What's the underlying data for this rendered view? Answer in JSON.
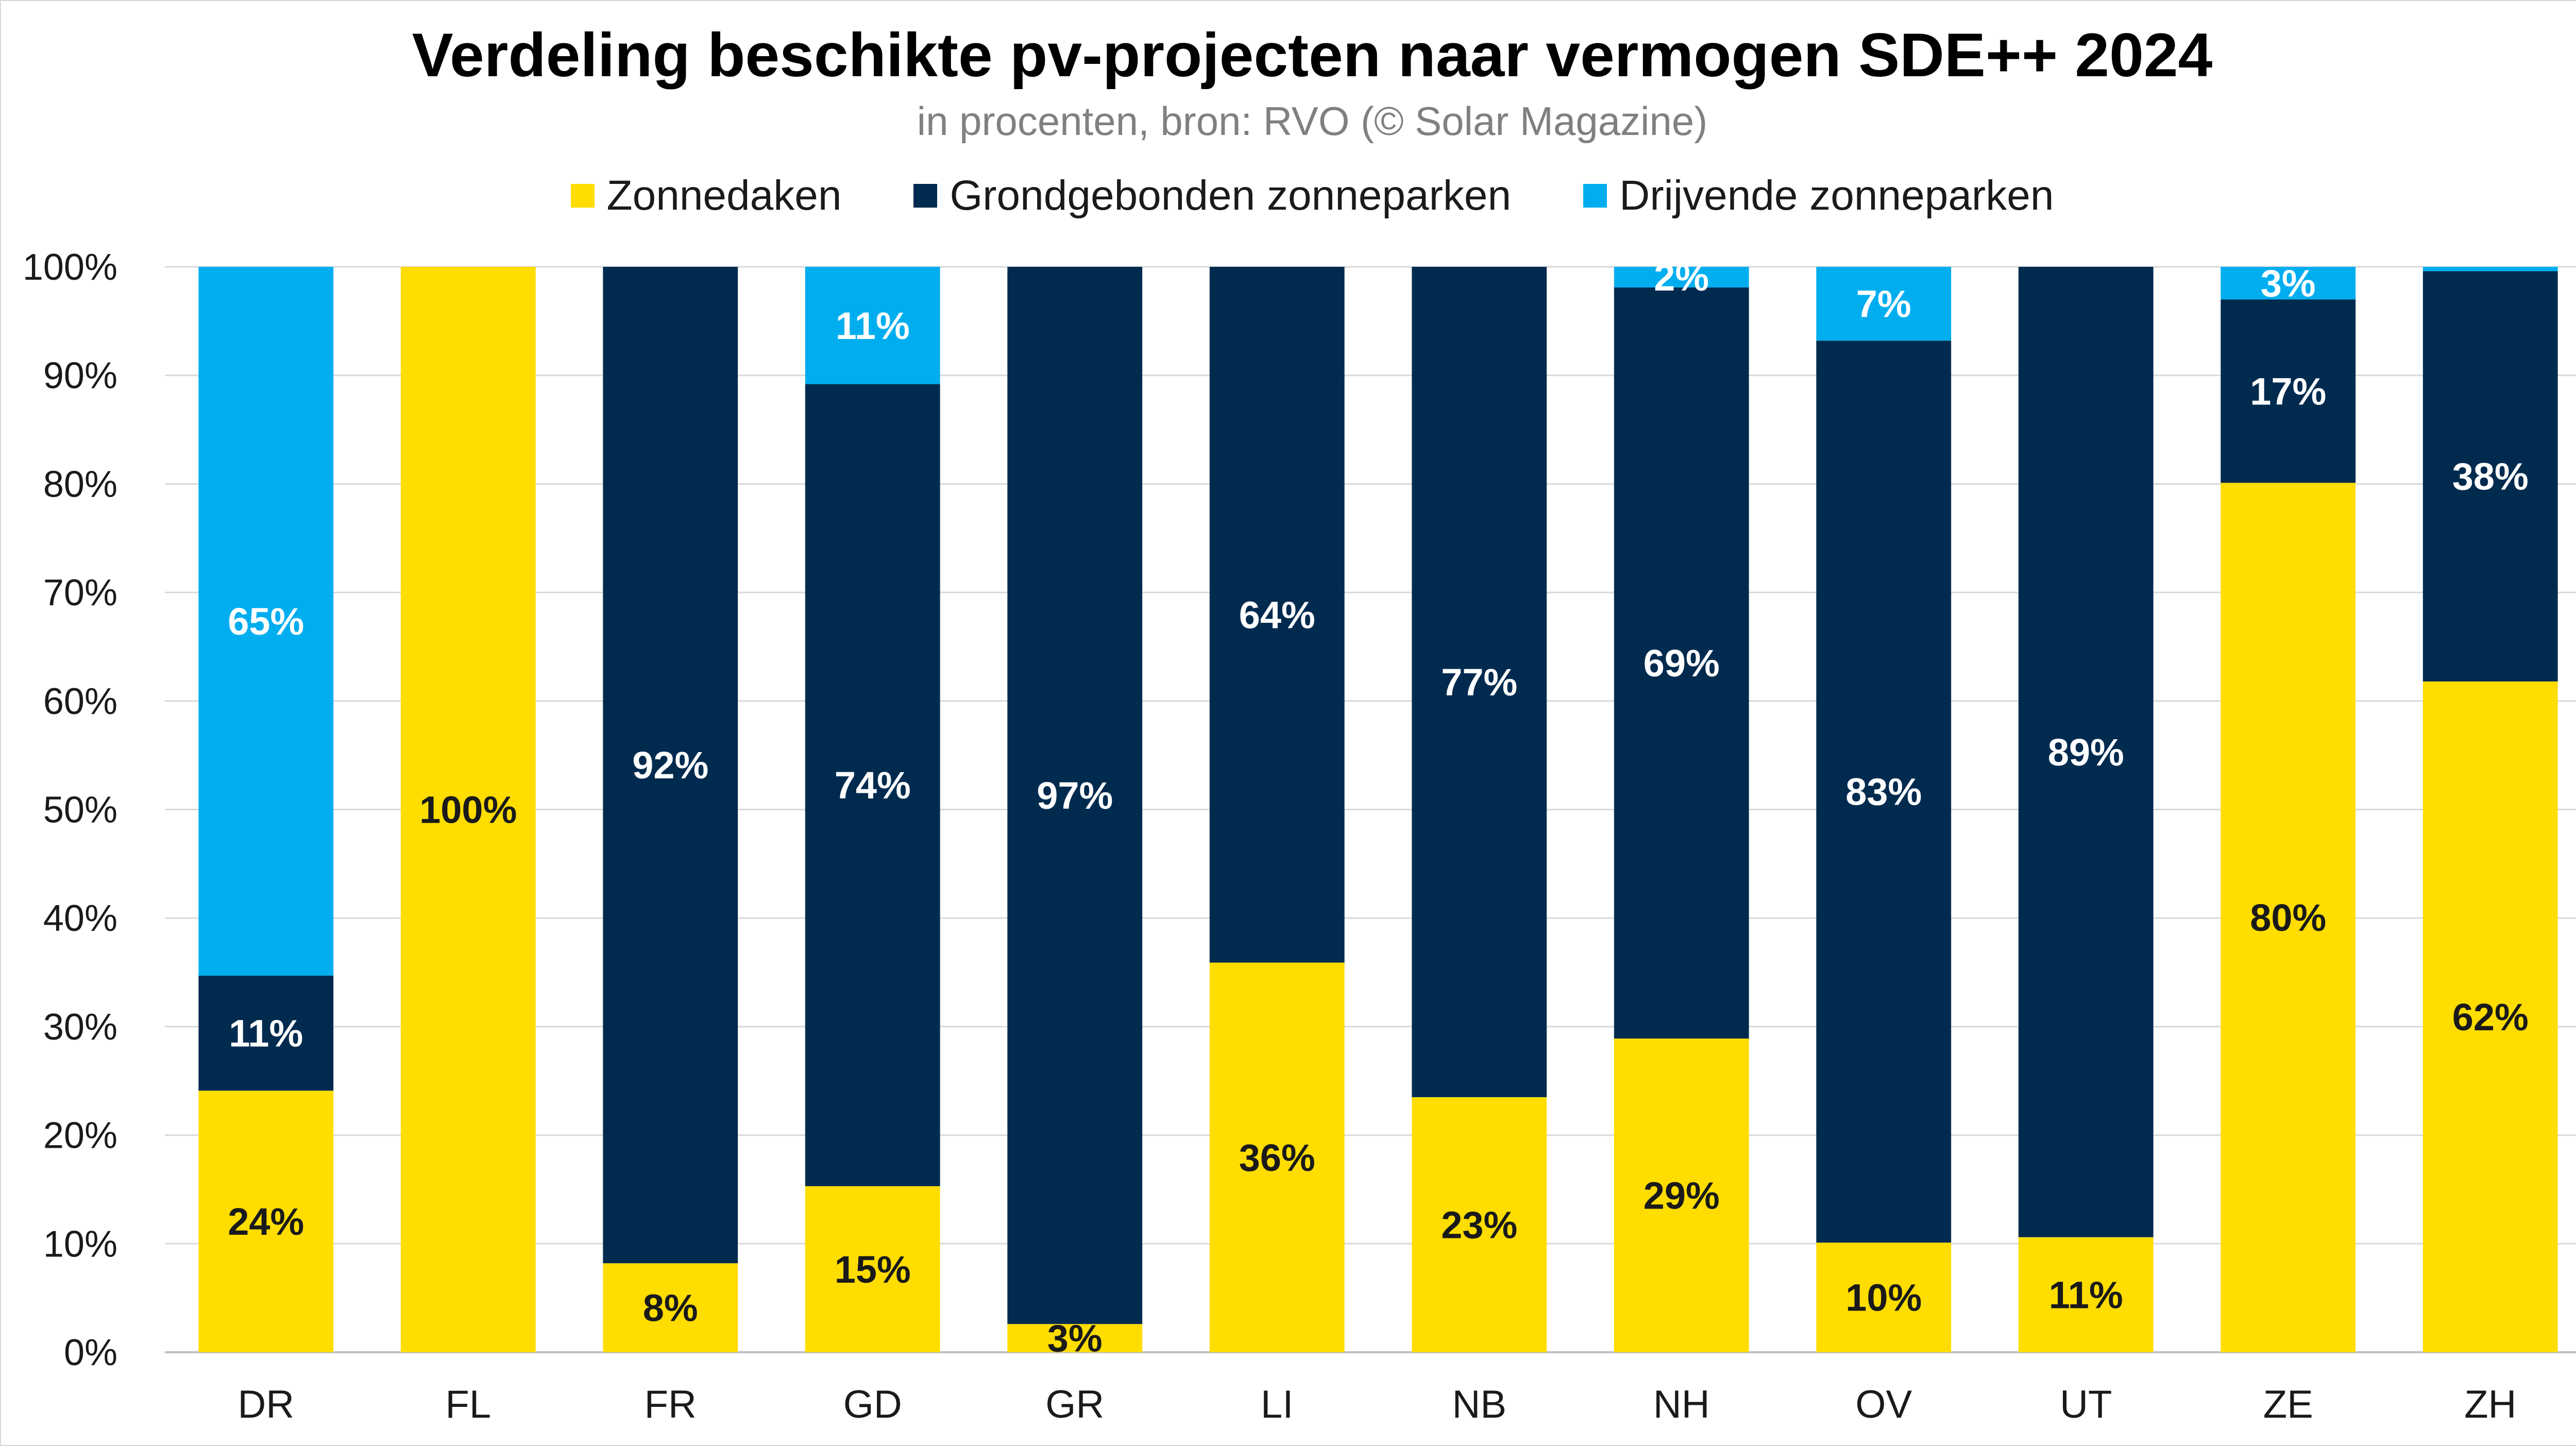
{
  "chart_data": {
    "type": "bar",
    "stacked": true,
    "title": "Verdeling beschikte pv-projecten naar vermogen SDE++ 2024",
    "subtitle": "in procenten, bron: RVO (© Solar Magazine)",
    "categories": [
      "DR",
      "FL",
      "FR",
      "GD",
      "GR",
      "LI",
      "NB",
      "NH",
      "OV",
      "UT",
      "ZE",
      "ZH"
    ],
    "series": [
      {
        "name": "Zonnedaken",
        "color": "#FFDD00",
        "label_color": "#1a1a1a",
        "values": [
          24.1,
          100,
          8.2,
          15.3,
          2.6,
          35.9,
          23.5,
          28.9,
          10.1,
          10.6,
          80.1,
          61.8
        ],
        "labels": [
          "24%",
          "100%",
          "8%",
          "15%",
          "3%",
          "36%",
          "23%",
          "29%",
          "10%",
          "11%",
          "80%",
          "62%"
        ]
      },
      {
        "name": "Grondgebonden zonneparken",
        "color": "#002B4F",
        "label_color": "#ffffff",
        "values": [
          10.6,
          0,
          91.8,
          73.9,
          97.4,
          64.1,
          76.5,
          69.2,
          83.1,
          89.4,
          16.9,
          37.8
        ],
        "labels": [
          "11%",
          "",
          "92%",
          "74%",
          "97%",
          "64%",
          "77%",
          "69%",
          "83%",
          "89%",
          "17%",
          "38%"
        ]
      },
      {
        "name": "Drijvende zonneparken",
        "color": "#00AEEF",
        "label_color": "#ffffff",
        "values": [
          65.3,
          0,
          0,
          10.8,
          0,
          0,
          0,
          1.9,
          6.8,
          0,
          3.0,
          0.4
        ],
        "labels": [
          "65%",
          "",
          "",
          "11%",
          "",
          "",
          "",
          "2%",
          "7%",
          "",
          "3%",
          ""
        ]
      }
    ],
    "ylim": [
      0,
      100
    ],
    "yticks": [
      "0%",
      "10%",
      "20%",
      "30%",
      "40%",
      "50%",
      "60%",
      "70%",
      "80%",
      "90%",
      "100%"
    ],
    "grid": true,
    "legend_position": "top"
  }
}
